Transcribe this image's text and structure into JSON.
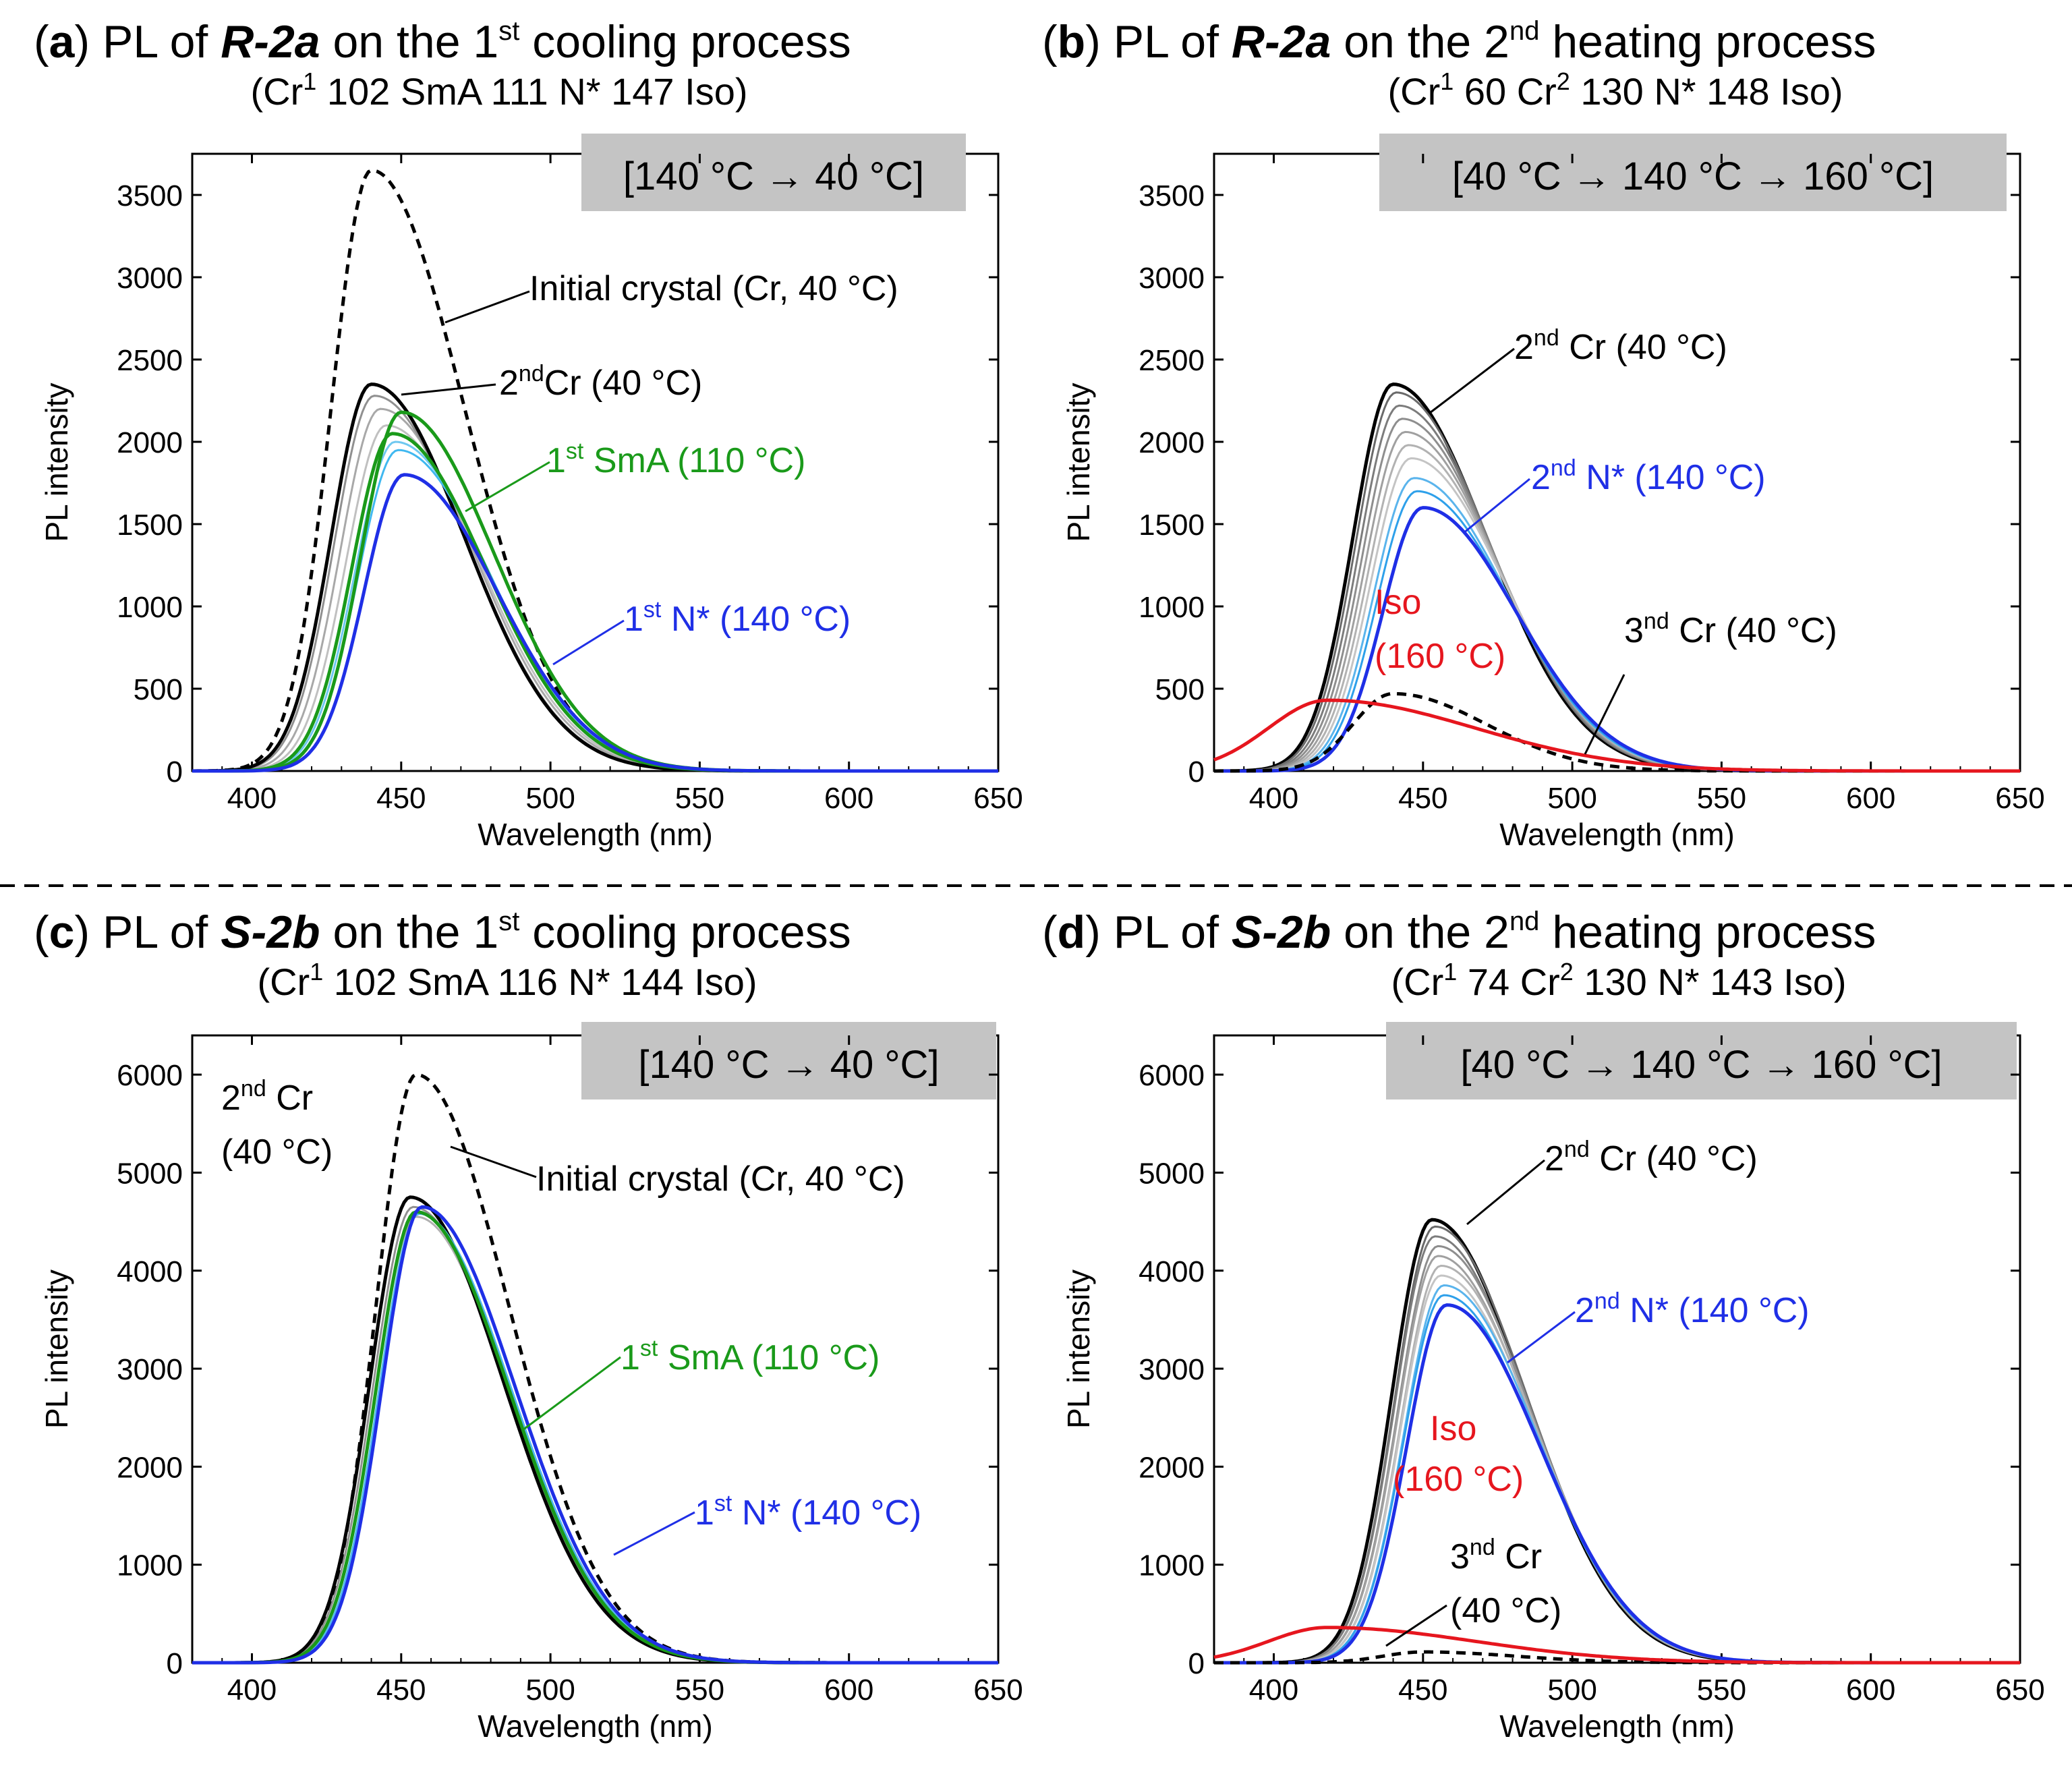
{
  "chart_data": [
    {
      "type": "line",
      "panel": "a",
      "title": {
        "label": "a",
        "pre": "PL of ",
        "compound": "R-2a",
        "mid": " on the 1",
        "sup": "st",
        "post": " cooling process"
      },
      "subtitle": {
        "a": "(Cr",
        "a_sup": "1",
        "b": " 102 SmA 111 N* 147 Iso)"
      },
      "condition": "[140 °C → 40 °C]",
      "xlabel": "Wavelength (nm)",
      "ylabel": "PL intensity",
      "xlim": [
        380,
        650
      ],
      "ylim": [
        0,
        3750
      ],
      "xticks": [
        "400",
        "450",
        "500",
        "550",
        "600",
        "650"
      ],
      "yticks": [
        "0",
        "500",
        "1000",
        "1500",
        "2000",
        "2500",
        "3000",
        "3500"
      ],
      "series": [
        {
          "name": "Initial crystal (Cr, 40 °C)",
          "color": "#000000",
          "dashed": true,
          "peak": 3650,
          "center": 440
        },
        {
          "name": "intermediate",
          "color": "#c0c0c0",
          "peak": 2100,
          "center": 445
        },
        {
          "name": "intermediate",
          "color": "#a8a8a8",
          "peak": 2200,
          "center": 443
        },
        {
          "name": "intermediate",
          "color": "#909090",
          "peak": 2280,
          "center": 441
        },
        {
          "name": "2nd Cr (40 °C)",
          "color": "#000000",
          "peak": 2350,
          "center": 440
        },
        {
          "name": "intermediate",
          "color": "#40b8f0",
          "peak": 1950,
          "center": 449
        },
        {
          "name": "intermediate",
          "color": "#6fc8f0",
          "peak": 2000,
          "center": 448
        },
        {
          "name": "1st SmA (110 °C)",
          "color": "#1a9a1a",
          "peak": 2180,
          "center": 450
        },
        {
          "name": "1st SmA (110 °C) b",
          "color": "#1a9a1a",
          "peak": 2050,
          "center": 447
        },
        {
          "name": "1st N* (140 °C)",
          "color": "#1f2fe6",
          "peak": 1800,
          "center": 451
        }
      ],
      "annotations": [
        {
          "text": "Initial crystal (Cr, 40 °C)",
          "color": "#000000"
        },
        {
          "text": "Cr (40 °C)",
          "prefix": "2",
          "sup": "nd",
          "color": "#000000"
        },
        {
          "text": " SmA (110 °C)",
          "prefix": "1",
          "sup": "st",
          "color": "#1a9a1a"
        },
        {
          "text": " N* (140 °C)",
          "prefix": "1",
          "sup": "st",
          "color": "#1f2fe6"
        }
      ]
    },
    {
      "type": "line",
      "panel": "b",
      "title": {
        "label": "b",
        "pre": "PL of ",
        "compound": "R-2a",
        "mid": " on the 2",
        "sup": "nd",
        "post": " heating process"
      },
      "subtitle": {
        "a": "(Cr",
        "a_sup": "1",
        "b": " 60 Cr",
        "b_sup": "2",
        "c": " 130 N* 148 Iso)"
      },
      "condition": "[40 °C → 140 °C → 160 °C]",
      "xlabel": "Wavelength (nm)",
      "ylabel": "PL intensity",
      "xlim": [
        380,
        650
      ],
      "ylim": [
        0,
        3750
      ],
      "xticks": [
        "400",
        "450",
        "500",
        "550",
        "600",
        "650"
      ],
      "yticks": [
        "0",
        "500",
        "1000",
        "1500",
        "2000",
        "2500",
        "3000",
        "3500"
      ],
      "series": [
        {
          "name": "2nd Cr (40 °C)",
          "color": "#000000",
          "peak": 2350,
          "center": 440
        },
        {
          "name": "intermediate",
          "color": "#6a6a6a",
          "peak": 2300,
          "center": 441
        },
        {
          "name": "intermediate",
          "color": "#7c7c7c",
          "peak": 2220,
          "center": 442
        },
        {
          "name": "intermediate",
          "color": "#8e8e8e",
          "peak": 2140,
          "center": 443
        },
        {
          "name": "intermediate",
          "color": "#a0a0a0",
          "peak": 2060,
          "center": 444
        },
        {
          "name": "intermediate",
          "color": "#b2b2b2",
          "peak": 1980,
          "center": 445
        },
        {
          "name": "intermediate",
          "color": "#c4c4c4",
          "peak": 1900,
          "center": 446
        },
        {
          "name": "intermediate",
          "color": "#5ab4ec",
          "peak": 1780,
          "center": 447
        },
        {
          "name": "intermediate",
          "color": "#2ea0ea",
          "peak": 1700,
          "center": 448
        },
        {
          "name": "2nd N* (140 °C)",
          "color": "#1f2fe6",
          "peak": 1600,
          "center": 450
        },
        {
          "name": "3nd Cr (40 °C)",
          "color": "#000000",
          "dashed": true,
          "peak": 470,
          "center": 440
        },
        {
          "name": "Iso (160 °C)",
          "color": "#e6161e",
          "peak": 430,
          "center": 418
        }
      ],
      "annotations": [
        {
          "text": " Cr (40 °C)",
          "prefix": "2",
          "sup": "nd",
          "color": "#000000"
        },
        {
          "text": "  N* (140 °C)",
          "prefix": "2",
          "sup": "nd",
          "color": "#1f2fe6"
        },
        {
          "text": "Iso",
          "color": "#e6161e"
        },
        {
          "text": "(160 °C)",
          "color": "#e6161e"
        },
        {
          "text": " Cr (40 °C)",
          "prefix": "3",
          "sup": "nd",
          "color": "#000000"
        }
      ]
    },
    {
      "type": "line",
      "panel": "c",
      "title": {
        "label": "c",
        "pre": "PL of ",
        "compound": "S-2b",
        "mid": " on the 1",
        "sup": "st",
        "post": " cooling process"
      },
      "subtitle": {
        "a": "(Cr",
        "a_sup": "1",
        "b": " 102 SmA 116 N* 144 Iso)"
      },
      "condition": "[140 °C → 40 °C]",
      "xlabel": "Wavelength (nm)",
      "ylabel": "PL intensity",
      "xlim": [
        380,
        650
      ],
      "ylim": [
        0,
        6400
      ],
      "xticks": [
        "400",
        "450",
        "500",
        "550",
        "600",
        "650"
      ],
      "yticks": [
        "0",
        "1000",
        "2000",
        "3000",
        "4000",
        "5000",
        "6000"
      ],
      "series": [
        {
          "name": "Initial crystal (Cr, 40 °C)",
          "color": "#000000",
          "dashed": true,
          "peak": 6000,
          "center": 455
        },
        {
          "name": "intermediate",
          "color": "#b0b0b0",
          "peak": 4550,
          "center": 455
        },
        {
          "name": "intermediate",
          "color": "#909090",
          "peak": 4650,
          "center": 454
        },
        {
          "name": "2nd Cr (40 °C)",
          "color": "#000000",
          "peak": 4750,
          "center": 453
        },
        {
          "name": "intermediate",
          "color": "#50b8ee",
          "peak": 4580,
          "center": 456
        },
        {
          "name": "1st SmA (110 °C)",
          "color": "#1a9a1a",
          "peak": 4600,
          "center": 455
        },
        {
          "name": "1st N* (140 °C)",
          "color": "#1f2fe6",
          "peak": 4650,
          "center": 457
        }
      ],
      "annotations": [
        {
          "text": " Cr",
          "prefix": "2",
          "sup": "nd",
          "color": "#000000"
        },
        {
          "text": "(40 °C)",
          "color": "#000000"
        },
        {
          "text": "Initial crystal (Cr, 40 °C)",
          "color": "#000000"
        },
        {
          "text": " SmA (110 °C)",
          "prefix": "1",
          "sup": "st",
          "color": "#1a9a1a"
        },
        {
          "text": " N* (140 °C)",
          "prefix": "1",
          "sup": "st",
          "color": "#1f2fe6"
        }
      ]
    },
    {
      "type": "line",
      "panel": "d",
      "title": {
        "label": "d",
        "pre": "PL of ",
        "compound": "S-2b",
        "mid": " on the 2",
        "sup": "nd",
        "post": " heating process"
      },
      "subtitle": {
        "a": "(Cr",
        "a_sup": "1",
        "b": " 74 Cr",
        "b_sup": "2",
        "c": " 130 N* 143 Iso)"
      },
      "condition": "[40 °C → 140 °C → 160 °C]",
      "xlabel": "Wavelength (nm)",
      "ylabel": "PL intensity",
      "xlim": [
        380,
        650
      ],
      "ylim": [
        0,
        6400
      ],
      "xticks": [
        "400",
        "450",
        "500",
        "550",
        "600",
        "650"
      ],
      "yticks": [
        "0",
        "1000",
        "2000",
        "3000",
        "4000",
        "5000",
        "6000"
      ],
      "series": [
        {
          "name": "2nd Cr (40 °C)",
          "color": "#000000",
          "peak": 4520,
          "center": 453
        },
        {
          "name": "intermediate",
          "color": "#6a6a6a",
          "peak": 4450,
          "center": 454
        },
        {
          "name": "intermediate",
          "color": "#7c7c7c",
          "peak": 4350,
          "center": 454
        },
        {
          "name": "intermediate",
          "color": "#8e8e8e",
          "peak": 4250,
          "center": 455
        },
        {
          "name": "intermediate",
          "color": "#a0a0a0",
          "peak": 4150,
          "center": 455
        },
        {
          "name": "intermediate",
          "color": "#b2b2b2",
          "peak": 4050,
          "center": 456
        },
        {
          "name": "intermediate",
          "color": "#c4c4c4",
          "peak": 3950,
          "center": 456
        },
        {
          "name": "intermediate",
          "color": "#5ab4ec",
          "peak": 3850,
          "center": 457
        },
        {
          "name": "intermediate",
          "color": "#2ea0ea",
          "peak": 3750,
          "center": 457
        },
        {
          "name": "2nd N* (140 °C)",
          "color": "#1f2fe6",
          "peak": 3650,
          "center": 458
        },
        {
          "name": "3nd Cr (40 °C)",
          "color": "#000000",
          "dashed": true,
          "peak": 110,
          "center": 450
        },
        {
          "name": "Iso (160 °C)",
          "color": "#e6161e",
          "peak": 360,
          "center": 418
        }
      ],
      "annotations": [
        {
          "text": " Cr (40 °C)",
          "prefix": "2",
          "sup": "nd",
          "color": "#000000"
        },
        {
          "text": "  N* (140 °C)",
          "prefix": "2",
          "sup": "nd",
          "color": "#1f2fe6"
        },
        {
          "text": "Iso",
          "color": "#e6161e"
        },
        {
          "text": "(160 °C)",
          "color": "#e6161e"
        },
        {
          "text": " Cr",
          "prefix": "3",
          "sup": "nd",
          "color": "#000000"
        },
        {
          "text": "(40 °C)",
          "color": "#000000"
        }
      ]
    }
  ]
}
